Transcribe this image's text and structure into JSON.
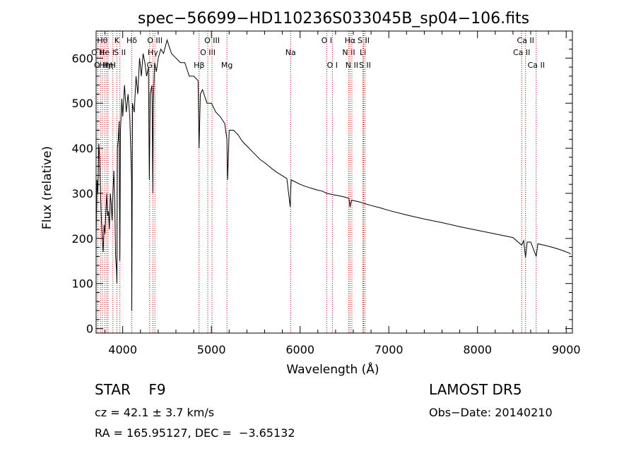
{
  "chart_data": {
    "type": "line",
    "title": "spec−56699−HD110236S033045B_sp04−106.fits",
    "xlabel": "Wavelength (Å)",
    "ylabel": "Flux (relative)",
    "xlim": [
      3700,
      9070
    ],
    "ylim": [
      -10,
      660
    ],
    "xticks": [
      4000,
      5000,
      6000,
      7000,
      8000,
      9000
    ],
    "yticks": [
      0,
      100,
      200,
      300,
      400,
      500,
      600
    ],
    "line_color": "#000000",
    "marker_color": "#cc0000",
    "series": [
      {
        "x": [
          3700,
          3710,
          3720,
          3730,
          3740,
          3750,
          3760,
          3770,
          3780,
          3790,
          3800,
          3810,
          3820,
          3830,
          3840,
          3850,
          3860,
          3870,
          3880,
          3890,
          3900,
          3910,
          3920,
          3930,
          3935,
          3940,
          3950,
          3960,
          3968,
          3975,
          3990,
          4000,
          4020,
          4040,
          4060,
          4080,
          4100,
          4102,
          4110,
          4130,
          4150,
          4170,
          4190,
          4210,
          4230,
          4250,
          4270,
          4290,
          4300,
          4310,
          4330,
          4340,
          4345,
          4360,
          4380,
          4400,
          4430,
          4460,
          4500,
          4550,
          4600,
          4650,
          4700,
          4750,
          4800,
          4850,
          4861,
          4875,
          4900,
          4950,
          5000,
          5050,
          5100,
          5150,
          5175,
          5183,
          5200,
          5250,
          5300,
          5350,
          5400,
          5450,
          5500,
          5550,
          5600,
          5650,
          5700,
          5750,
          5800,
          5850,
          5889,
          5893,
          5900,
          5950,
          6000,
          6050,
          6100,
          6150,
          6200,
          6250,
          6300,
          6350,
          6400,
          6450,
          6500,
          6550,
          6563,
          6580,
          6600,
          6650,
          6700,
          6800,
          6900,
          7000,
          7200,
          7400,
          7600,
          7800,
          8000,
          8200,
          8400,
          8498,
          8520,
          8542,
          8560,
          8600,
          8662,
          8680,
          8750,
          8850,
          8950,
          9000,
          9030,
          9050
        ],
        "y": [
          200,
          330,
          300,
          410,
          380,
          300,
          240,
          200,
          170,
          230,
          210,
          260,
          300,
          250,
          260,
          220,
          300,
          280,
          240,
          300,
          350,
          280,
          160,
          130,
          100,
          400,
          420,
          460,
          150,
          440,
          510,
          470,
          540,
          480,
          520,
          470,
          330,
          40,
          500,
          480,
          560,
          520,
          600,
          560,
          610,
          590,
          560,
          580,
          330,
          520,
          540,
          300,
          500,
          590,
          570,
          600,
          620,
          610,
          640,
          610,
          600,
          590,
          590,
          560,
          560,
          550,
          400,
          520,
          530,
          500,
          500,
          480,
          470,
          455,
          420,
          330,
          440,
          440,
          430,
          415,
          405,
          395,
          385,
          375,
          368,
          360,
          352,
          345,
          339,
          333,
          270,
          300,
          330,
          325,
          320,
          316,
          313,
          310,
          307,
          305,
          300,
          298,
          296,
          294,
          292,
          289,
          270,
          285,
          284,
          282,
          279,
          273,
          268,
          262,
          252,
          243,
          235,
          226,
          218,
          210,
          202,
          185,
          195,
          158,
          192,
          192,
          160,
          188,
          185,
          180,
          174,
          170,
          168,
          165
        ]
      }
    ],
    "line_markers": [
      {
        "x": 3720,
        "label": "O II",
        "row": 2
      },
      {
        "x": 3750,
        "label": "O II",
        "row": 3
      },
      {
        "x": 3771,
        "label": "Hθ",
        "row": 1
      },
      {
        "x": 3798,
        "label": "Hη",
        "row": 3
      },
      {
        "x": 3820,
        "label": "He I",
        "row": 2
      },
      {
        "x": 3835,
        "label": "Hη",
        "row": 3
      },
      {
        "x": 3889,
        "label": "H",
        "row": 3
      },
      {
        "x": 3934,
        "label": "K",
        "row": 1
      },
      {
        "x": 3968,
        "label": "S II",
        "row": 2
      },
      {
        "x": 4102,
        "label": "Hδ",
        "row": 1
      },
      {
        "x": 4304,
        "label": "G",
        "row": 3
      },
      {
        "x": 4340,
        "label": "Hγ",
        "row": 2
      },
      {
        "x": 4363,
        "label": "O III",
        "row": 1
      },
      {
        "x": 4861,
        "label": "Hβ",
        "row": 3
      },
      {
        "x": 4959,
        "label": "O III",
        "row": 2
      },
      {
        "x": 5007,
        "label": "O III",
        "row": 1
      },
      {
        "x": 5175,
        "label": "Mg",
        "row": 3
      },
      {
        "x": 5893,
        "label": "Na",
        "row": 2
      },
      {
        "x": 6300,
        "label": "O I",
        "row": 1
      },
      {
        "x": 6364,
        "label": "O I",
        "row": 3
      },
      {
        "x": 6548,
        "label": "N II",
        "row": 2
      },
      {
        "x": 6563,
        "label": "Hα",
        "row": 1
      },
      {
        "x": 6583,
        "label": "N II",
        "row": 3
      },
      {
        "x": 6708,
        "label": "Li",
        "row": 2
      },
      {
        "x": 6716,
        "label": "S II",
        "row": 1
      },
      {
        "x": 6731,
        "label": "S II",
        "row": 3
      },
      {
        "x": 8498,
        "label": "Ca II",
        "row": 2
      },
      {
        "x": 8542,
        "label": "Ca II",
        "row": 1
      },
      {
        "x": 8662,
        "label": "Ca II",
        "row": 3
      }
    ]
  },
  "info": {
    "object_class": "STAR    F9",
    "survey": "LAMOST DR5",
    "cz": "cz = 42.1 ± 3.7 km/s",
    "obs_date": "Obs−Date: 20140210",
    "radec": "RA = 165.95127, DEC =  −3.65132"
  }
}
